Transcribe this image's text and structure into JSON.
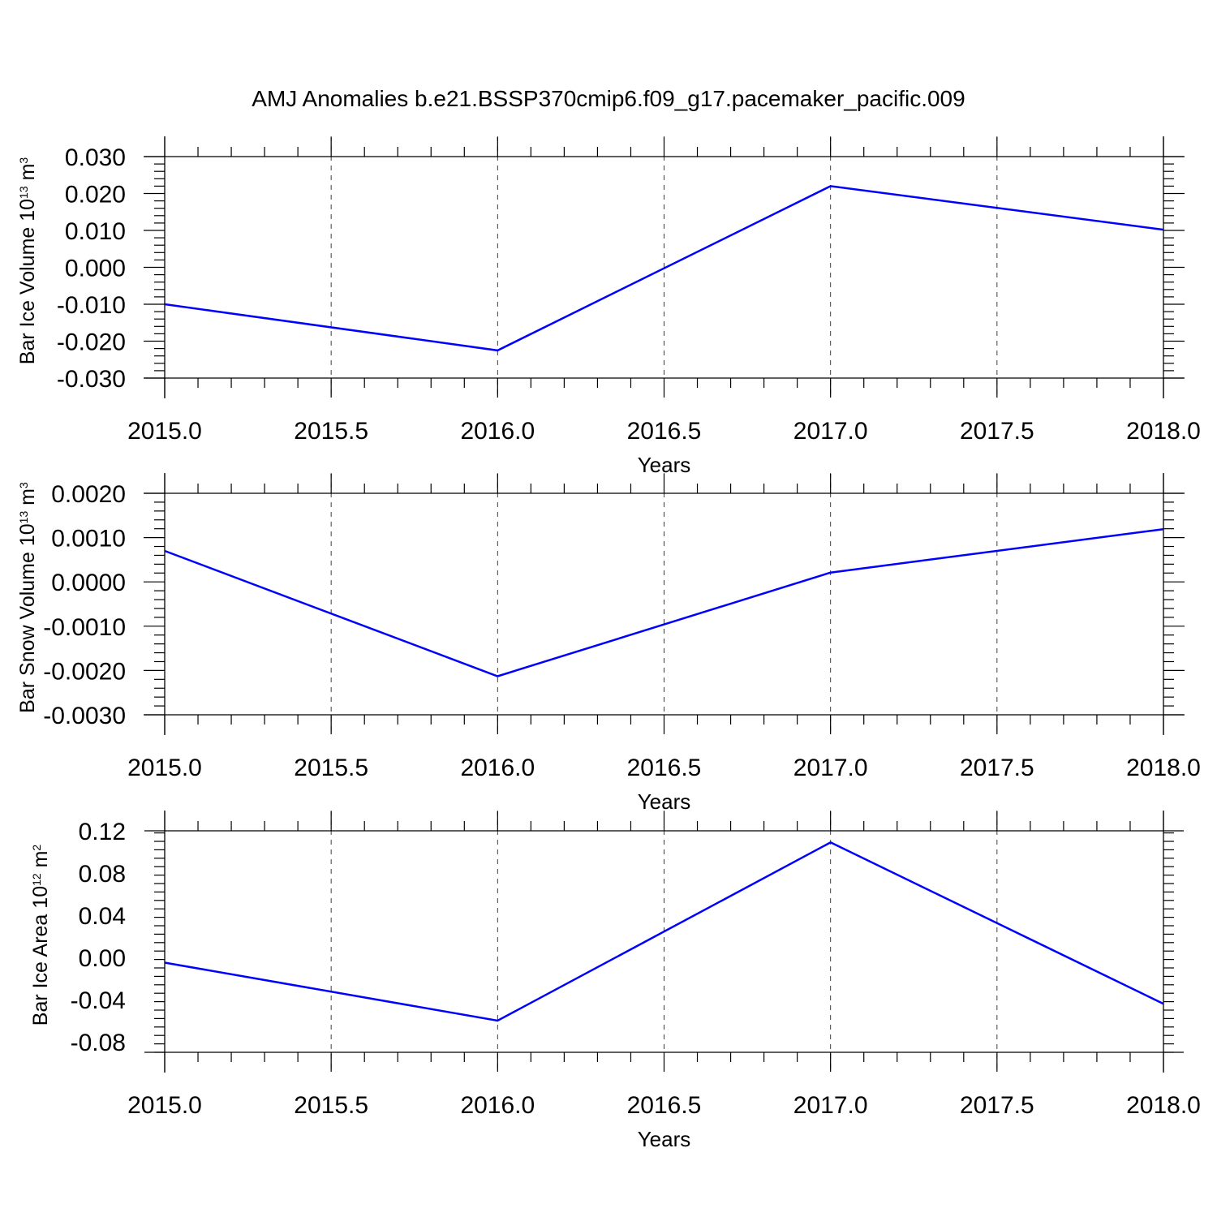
{
  "title": "AMJ Anomalies b.e21.BSSP370cmip6.f09_g17.pacemaker_pacific.009",
  "colors": {
    "line": "#0000ff",
    "frame": "#000000",
    "grid": "#000000"
  },
  "chart_data": [
    {
      "type": "line",
      "xlabel": "Years",
      "ylabel": {
        "main": "Bar Ice Volume 10",
        "exp": "13",
        "unit": " m",
        "unit_exp": "3"
      },
      "x": [
        2015.0,
        2016.0,
        2017.0,
        2018.0
      ],
      "series": [
        {
          "values": [
            -0.01,
            -0.0225,
            0.022,
            0.0102
          ]
        }
      ],
      "xlim": [
        2015.0,
        2018.0
      ],
      "ylim": [
        -0.03,
        0.03
      ],
      "xticks": [
        2015.0,
        2015.5,
        2016.0,
        2016.5,
        2017.0,
        2017.5,
        2018.0
      ],
      "xtick_labels": [
        "2015.0",
        "2015.5",
        "2016.0",
        "2016.5",
        "2017.0",
        "2017.5",
        "2018.0"
      ],
      "yticks": [
        -0.03,
        -0.02,
        -0.01,
        0.0,
        0.01,
        0.02,
        0.03
      ],
      "ytick_labels": [
        "-0.030",
        "-0.020",
        "-0.010",
        "0.000",
        "0.010",
        "0.020",
        "0.030"
      ],
      "yminor_step": 0.002,
      "grid": "vertical-dashed"
    },
    {
      "type": "line",
      "xlabel": "Years",
      "ylabel": {
        "main": "Bar Snow Volume 10",
        "exp": "13",
        "unit": " m",
        "unit_exp": "3"
      },
      "x": [
        2015.0,
        2016.0,
        2017.0,
        2018.0
      ],
      "series": [
        {
          "values": [
            0.0007,
            -0.00213,
            0.00021,
            0.00119
          ]
        }
      ],
      "xlim": [
        2015.0,
        2018.0
      ],
      "ylim": [
        -0.003,
        0.002
      ],
      "xticks": [
        2015.0,
        2015.5,
        2016.0,
        2016.5,
        2017.0,
        2017.5,
        2018.0
      ],
      "xtick_labels": [
        "2015.0",
        "2015.5",
        "2016.0",
        "2016.5",
        "2017.0",
        "2017.5",
        "2018.0"
      ],
      "yticks": [
        -0.003,
        -0.002,
        -0.001,
        0.0,
        0.001,
        0.002
      ],
      "ytick_labels": [
        "-0.0030",
        "-0.0020",
        "-0.0010",
        "0.0000",
        "0.0010",
        "0.0020"
      ],
      "yminor_step": 0.0002,
      "grid": "vertical-dashed"
    },
    {
      "type": "line",
      "xlabel": "Years",
      "ylabel": {
        "main": "Bar Ice Area 10",
        "exp": "12",
        "unit": " m",
        "unit_exp": "2"
      },
      "x": [
        2015.0,
        2016.0,
        2017.0,
        2018.0
      ],
      "series": [
        {
          "values": [
            -0.005,
            -0.06,
            0.109,
            -0.044
          ]
        }
      ],
      "xlim": [
        2015.0,
        2018.0
      ],
      "ylim": [
        -0.09,
        0.12
      ],
      "xticks": [
        2015.0,
        2015.5,
        2016.0,
        2016.5,
        2017.0,
        2017.5,
        2018.0
      ],
      "xtick_labels": [
        "2015.0",
        "2015.5",
        "2016.0",
        "2016.5",
        "2017.0",
        "2017.5",
        "2018.0"
      ],
      "yticks": [
        -0.08,
        -0.04,
        0.0,
        0.04,
        0.08,
        0.12
      ],
      "ytick_labels": [
        "-0.08",
        "-0.04",
        "0.00",
        "0.04",
        "0.08",
        "0.12"
      ],
      "yminor_step": 0.008,
      "grid": "vertical-dashed"
    }
  ]
}
